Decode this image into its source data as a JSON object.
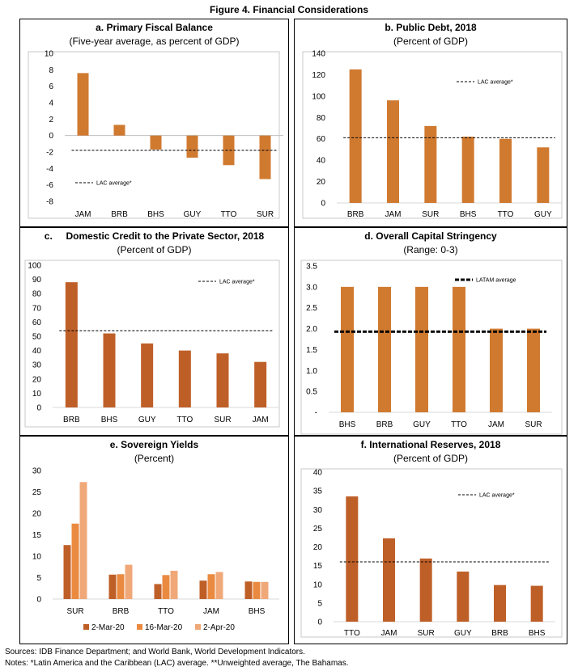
{
  "figure_title": "Figure 4. Financial Considerations",
  "colors": {
    "bar": "#d07a30",
    "bar_dark": "#bf5f28",
    "bar_light": "#f0a878",
    "bar_mid": "#ea8a40",
    "avg_line": "#000000"
  },
  "chart_data": [
    {
      "id": "a",
      "type": "bar",
      "title": "a. Primary Fiscal Balance",
      "subtitle": "(Five-year average, as percent of GDP)",
      "categories": [
        "JAM",
        "BRB",
        "BHS",
        "GUY",
        "TTO",
        "SUR"
      ],
      "values": [
        7.6,
        1.3,
        -1.7,
        -2.7,
        -3.6,
        -5.3
      ],
      "ylim": [
        -8,
        10
      ],
      "yticks": [
        "10",
        "8",
        "6",
        "4",
        "2",
        "0",
        "-2",
        "-4",
        "-6",
        "-8"
      ],
      "reference_line": {
        "label": "LAC average*",
        "value": -1.8
      },
      "legend_position": "bottom-left"
    },
    {
      "id": "b",
      "type": "bar",
      "title": "b. Public Debt, 2018",
      "subtitle": "(Percent of GDP)",
      "categories": [
        "BRB",
        "JAM",
        "SUR",
        "BHS",
        "TTO",
        "GUY"
      ],
      "values": [
        125,
        96,
        72,
        62,
        60,
        52
      ],
      "ylim": [
        0,
        140
      ],
      "yticks": [
        "140",
        "120",
        "100",
        "80",
        "60",
        "40",
        "20",
        "0"
      ],
      "reference_line": {
        "label": "LAC average*",
        "value": 61
      },
      "legend_position": "top-right"
    },
    {
      "id": "c",
      "type": "bar",
      "title": "c.     Domestic Credit to the Private Sector, 2018",
      "subtitle": "(Percent of GDP)",
      "categories": [
        "BRB",
        "BHS",
        "GUY",
        "TTO",
        "SUR",
        "JAM"
      ],
      "values": [
        88,
        52,
        45,
        40,
        38,
        32
      ],
      "ylim": [
        0,
        100
      ],
      "yticks": [
        "100",
        "90",
        "80",
        "70",
        "60",
        "50",
        "40",
        "30",
        "20",
        "10",
        "0"
      ],
      "reference_line": {
        "label": "LAC average*",
        "value": 54
      },
      "legend_position": "top-right"
    },
    {
      "id": "d",
      "type": "bar",
      "title": "d. Overall Capital Stringency",
      "subtitle": "(Range: 0-3)",
      "categories": [
        "BHS",
        "BRB",
        "GUY",
        "TTO",
        "JAM",
        "SUR"
      ],
      "values": [
        3.0,
        3.0,
        3.0,
        3.0,
        2.0,
        2.0
      ],
      "ylim": [
        0,
        3.5
      ],
      "yticks": [
        "3.5",
        "3.0",
        "2.5",
        "2.0",
        "1.5",
        "1.0",
        "0.5",
        "-"
      ],
      "reference_line": {
        "label": "LATAM average",
        "value": 1.93
      },
      "legend_position": "top-right"
    },
    {
      "id": "e",
      "type": "bar",
      "title": "e. Sovereign Yields",
      "subtitle": "(Percent)",
      "categories": [
        "SUR",
        "BRB",
        "TTO",
        "JAM",
        "BHS"
      ],
      "series": [
        {
          "name": "2-Mar-20",
          "values": [
            12.6,
            5.7,
            3.5,
            4.3,
            4.1
          ]
        },
        {
          "name": "16-Mar-20",
          "values": [
            17.6,
            5.8,
            5.6,
            5.8,
            4.0
          ]
        },
        {
          "name": "2-Apr-20",
          "values": [
            27.3,
            8.0,
            6.6,
            6.3,
            4.0
          ]
        }
      ],
      "ylim": [
        0,
        30
      ],
      "yticks": [
        "30",
        "25",
        "20",
        "15",
        "10",
        "5",
        "0"
      ],
      "legend_position": "bottom"
    },
    {
      "id": "f",
      "type": "bar",
      "title": "f. International Reserves, 2018",
      "subtitle": "(Percent of GDP)",
      "categories": [
        "TTO",
        "JAM",
        "SUR",
        "GUY",
        "BRB",
        "BHS"
      ],
      "values": [
        33.5,
        22.3,
        16.9,
        13.4,
        9.8,
        9.6
      ],
      "ylim": [
        0,
        40
      ],
      "yticks": [
        "40",
        "35",
        "30",
        "25",
        "20",
        "15",
        "10",
        "5",
        "0"
      ],
      "reference_line": {
        "label": "LAC average*",
        "value": 16
      },
      "legend_position": "top-right"
    }
  ],
  "notes": {
    "sources": "Sources: IDB Finance Department; and World Bank, World Development Indicators.",
    "notes": "Notes: *Latin America and the Caribbean (LAC) average. **Unweighted average, The Bahamas."
  }
}
